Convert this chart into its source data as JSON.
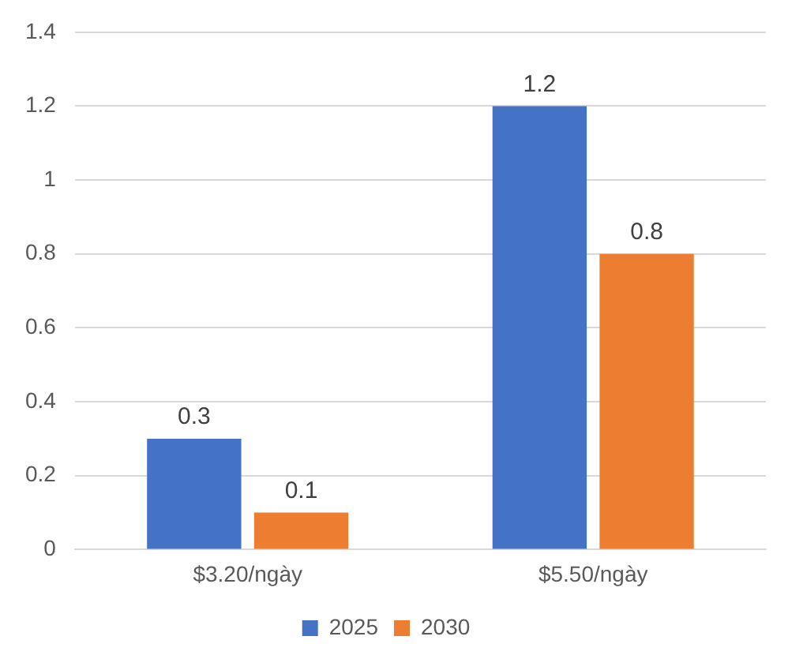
{
  "chart_data": {
    "type": "bar",
    "categories": [
      "$3.20/ngày",
      "$5.50/ngày"
    ],
    "series": [
      {
        "name": "2025",
        "color": "#4472c4",
        "values": [
          0.3,
          1.2
        ]
      },
      {
        "name": "2030",
        "color": "#ed7d31",
        "values": [
          0.1,
          0.8
        ]
      }
    ],
    "ylim": [
      0,
      1.4
    ],
    "yticks": [
      0,
      0.2,
      0.4,
      0.6,
      0.8,
      1,
      1.2,
      1.4
    ],
    "grid": "y",
    "legend": "bottom",
    "data_labels": true
  }
}
